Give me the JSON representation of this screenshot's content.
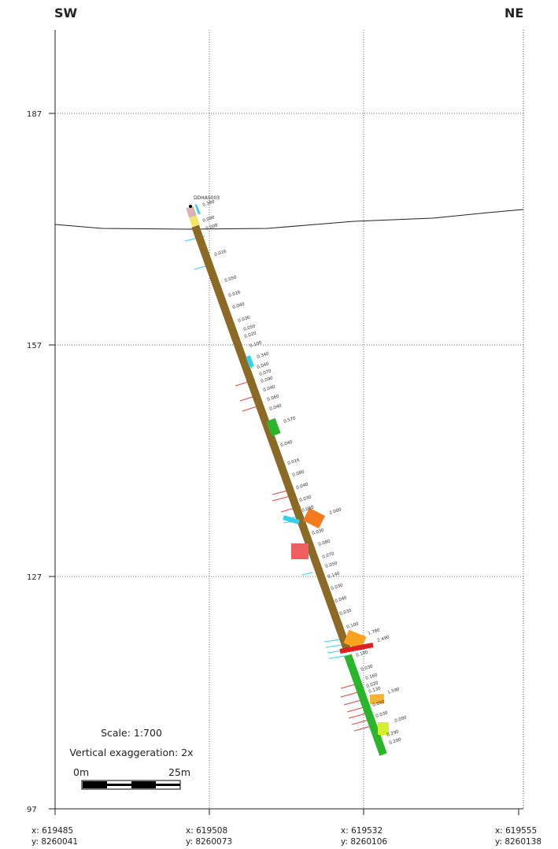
{
  "directions": {
    "left": "SW",
    "right": "NE"
  },
  "elevations": [
    "187",
    "157",
    "127",
    "97"
  ],
  "coordinates": [
    {
      "x": "x: 619485",
      "y": "y: 8260041"
    },
    {
      "x": "x: 619508",
      "y": "y: 8260073"
    },
    {
      "x": "x: 619532",
      "y": "y: 8260106"
    },
    {
      "x": "x: 619555",
      "y": "y: 8260138"
    }
  ],
  "hole_id": "DDHAS003",
  "assays": [
    "0.380",
    "0.090",
    "0.008",
    "0.016",
    "0.050",
    "0.016",
    "0.040",
    "0.030",
    "0.050",
    "0.020",
    "0.100",
    "0.340",
    "0.040",
    "0.070",
    "0.090",
    "0.040",
    "0.060",
    "0.040",
    "0.570",
    "0.040",
    "0.016",
    "0.080",
    "0.040",
    "0.030",
    "0.060",
    "2.000",
    "0.030",
    "0.080",
    "0.070",
    "0.050",
    "0.140",
    "0.030",
    "0.040",
    "0.030",
    "0.100",
    "1.780",
    "2.490",
    "0.100",
    "0.030",
    "0.160",
    "0.020",
    "0.130",
    "1.590",
    "0.050",
    "0.030",
    "0.090",
    "0.290",
    "0.200"
  ],
  "scale": {
    "ratio_label": "Scale: 1:700",
    "exaggeration_label": "Vertical exaggeration: 2x",
    "start_label": "0m",
    "end_label": "25m"
  },
  "colors": {
    "grid": "#444444",
    "topography": "#222222",
    "drill_trace": "#8a6a24",
    "fresh_rock": "#2bb52b",
    "grade_high": "#f47a1e",
    "grade_very_high": "#e01f1f",
    "grade_mid": "#f9b232",
    "grade_low": "#d6ee2c",
    "pink_zone": "#f05e5e",
    "structure_cyan": "#34d2e6",
    "structure_red": "#e04848",
    "collar_pink": "#d8b4b4",
    "collar_yellow": "#f2e66a"
  }
}
